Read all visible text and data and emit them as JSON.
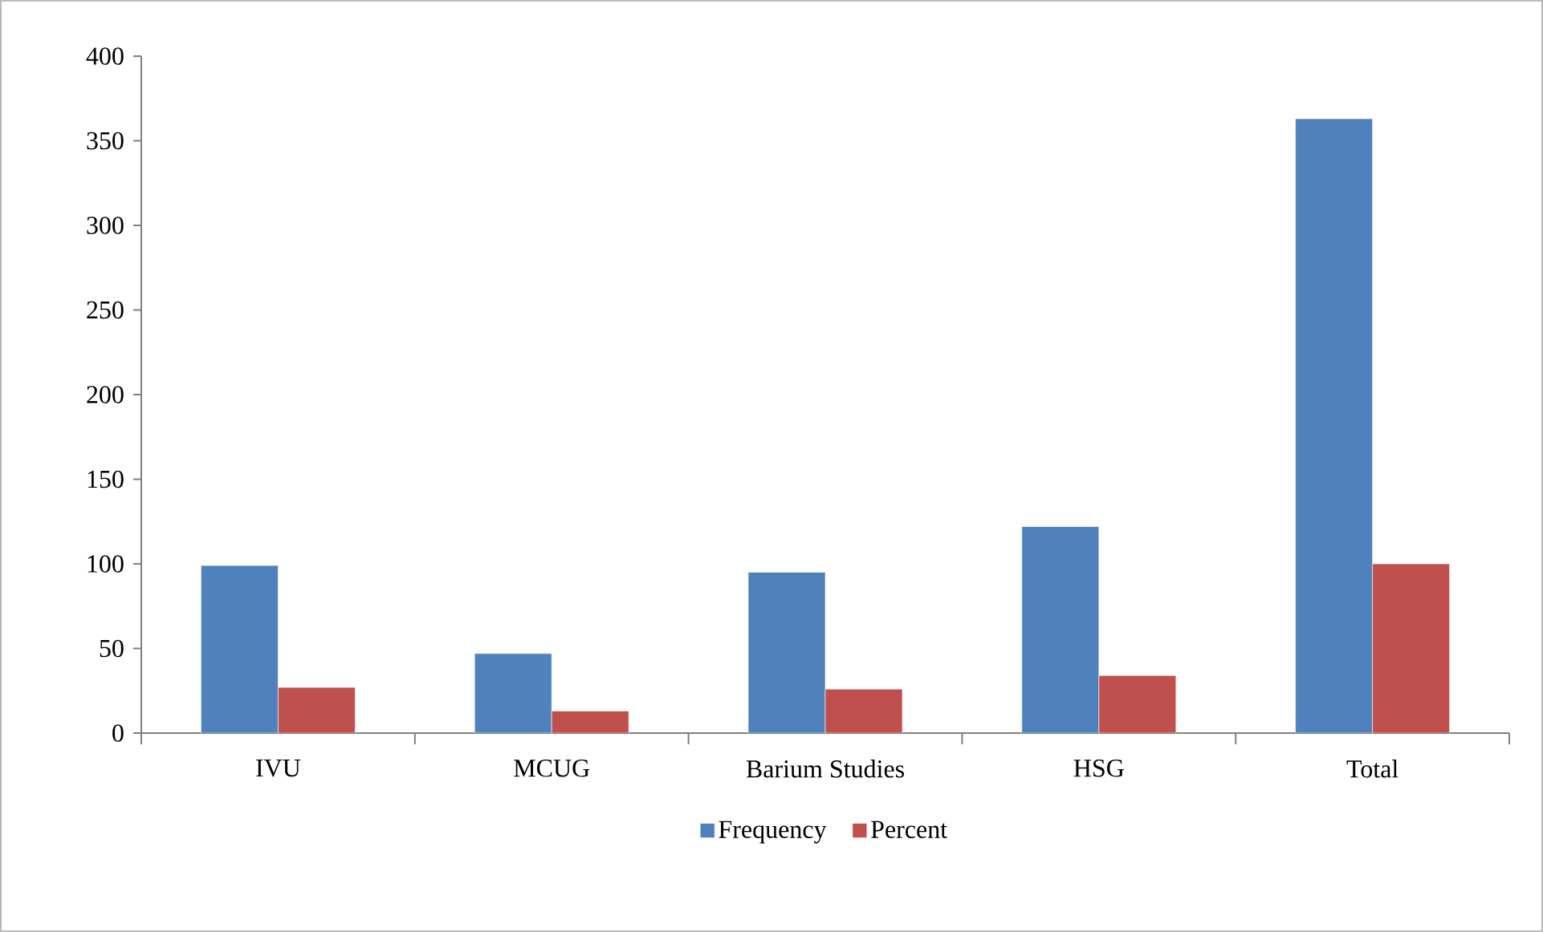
{
  "chart_data": {
    "type": "bar",
    "categories": [
      "IVU",
      "MCUG",
      "Barium Studies",
      "HSG",
      "Total"
    ],
    "series": [
      {
        "name": "Frequency",
        "color": "#4f81bd",
        "values": [
          99,
          47,
          95,
          122,
          363
        ]
      },
      {
        "name": "Percent",
        "color": "#c0504d",
        "values": [
          27,
          13,
          26,
          34,
          100
        ]
      }
    ],
    "ylim": [
      0,
      400
    ],
    "yticks": [
      0,
      50,
      100,
      150,
      200,
      250,
      300,
      350,
      400
    ],
    "legend": "bottom"
  }
}
